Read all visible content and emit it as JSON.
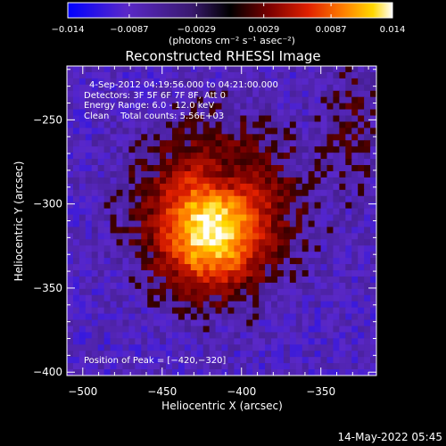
{
  "chart_data": {
    "type": "heatmap",
    "title": "Reconstructed RHESSI Image",
    "xlabel": "Heliocentric X (arcsec)",
    "ylabel": "Heliocentric Y (arcsec)",
    "xlim": [
      -510,
      -315
    ],
    "ylim": [
      -402,
      -218
    ],
    "x_ticks": [
      -500,
      -450,
      -400,
      -350
    ],
    "x_tick_labels": [
      "−500",
      "−450",
      "−400",
      "−350"
    ],
    "y_ticks": [
      -250,
      -300,
      -350,
      -400
    ],
    "y_tick_labels": [
      "−250",
      "−300",
      "−350",
      "−400"
    ],
    "colorbar": {
      "range": [
        -0.014,
        0.014
      ],
      "ticks": [
        -0.014,
        -0.0087,
        -0.0029,
        0.0029,
        0.0087,
        0.014
      ],
      "tick_labels": [
        "−0.014",
        "−0.0087",
        "−0.0029",
        "0.0029",
        "0.0087",
        "0.014"
      ],
      "units_label": "(photons cm⁻² s⁻¹ asec⁻²)",
      "colors": [
        "#0000ff",
        "#5a28c8",
        "#3a1a70",
        "#000000",
        "#7a0000",
        "#e02000",
        "#ff8000",
        "#ffd800",
        "#ffffff"
      ]
    },
    "annotations": {
      "time_range": "4-Sep-2012 04:19:56.000 to 04:21:00.000",
      "detectors": "Detectors: 3F 5F 6F 7F 8F, Att 0",
      "energy": "Energy Range: 6.0 - 12.0 keV",
      "clean": "Clean    Total counts: 5.56E+03",
      "peak": "Position of Peak = [−420,−320]"
    },
    "peak_position": [
      -420,
      -320
    ],
    "peak_value": 0.014,
    "footer_date": "14-May-2022 05:45"
  }
}
